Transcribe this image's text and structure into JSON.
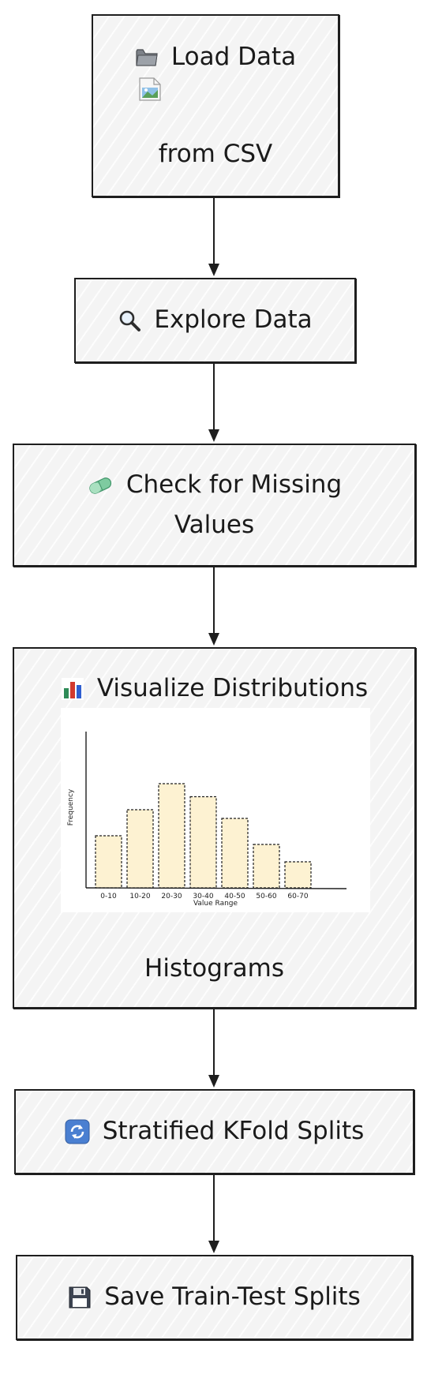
{
  "nodes": {
    "load": {
      "title": "Load Data",
      "subtitle": "from CSV",
      "icon": "folder-icon",
      "image_icon": "broken-image-icon"
    },
    "explore": {
      "title": "Explore Data",
      "icon": "magnifier-icon"
    },
    "missing": {
      "title_line1": "Check for Missing",
      "title_line2": "Values",
      "icon": "pill-icon"
    },
    "visualize": {
      "title": "Visualize Distributions",
      "caption": "Histograms",
      "icon": "bar-chart-icon"
    },
    "kfold": {
      "title": "Stratified KFold Splits",
      "icon": "refresh-icon"
    },
    "save": {
      "title": "Save Train-Test Splits",
      "icon": "floppy-disk-icon"
    }
  },
  "colors": {
    "border": "#1e1e1e",
    "node_fill": "#f4f4f4",
    "bar_fill": "#fdf2d2"
  },
  "chart_data": {
    "type": "bar",
    "categories": [
      "0-10",
      "10-20",
      "20-30",
      "30-40",
      "40-50",
      "50-60",
      "60-70"
    ],
    "values": [
      6,
      9,
      12,
      10.5,
      8,
      5,
      3
    ],
    "xlabel": "Value Range",
    "ylabel": "Frequency",
    "ylim": [
      0,
      18
    ],
    "grid": false
  }
}
